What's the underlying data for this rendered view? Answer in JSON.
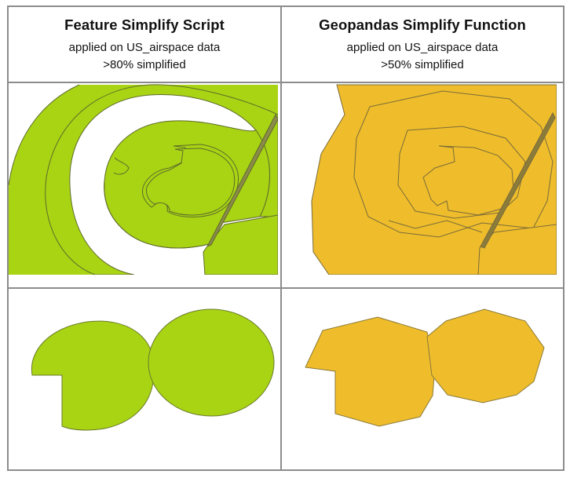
{
  "columns": [
    {
      "title": "Feature Simplify Script",
      "subtitle_line1": "applied on US_airspace data",
      "subtitle_line2": ">80% simplified"
    },
    {
      "title": "Geopandas Simplify Function",
      "subtitle_line1": "applied on US_airspace data",
      "subtitle_line2": ">50% simplified"
    }
  ],
  "colors": {
    "script_fill": "#a8d414",
    "geopandas_fill": "#efbd2b",
    "outline": "#6b6b4a",
    "grid_line": "#8c8c8c"
  }
}
